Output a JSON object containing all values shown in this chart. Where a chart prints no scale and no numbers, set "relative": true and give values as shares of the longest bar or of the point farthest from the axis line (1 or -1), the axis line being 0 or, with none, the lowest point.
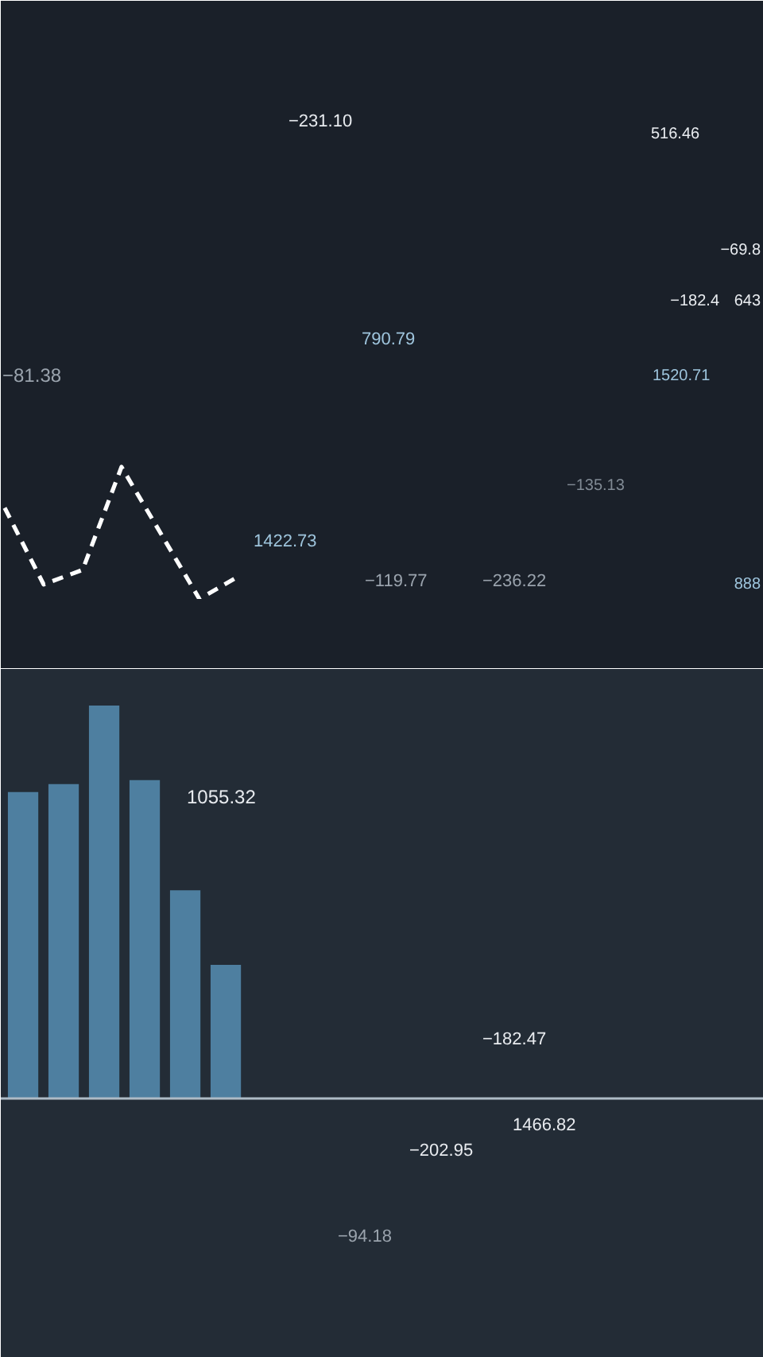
{
  "chart_data": [
    {
      "type": "line",
      "relative": true,
      "categories": [
        null,
        null,
        null,
        null,
        null,
        null,
        null
      ],
      "values": [
        0.69,
        0.11,
        0.22,
        1,
        0.5,
        0,
        0.17
      ],
      "color": "#ffffff",
      "line_style": "dashed",
      "annotations": [
        "−231.10",
        "516.46",
        "−69.8",
        "−182.4",
        "643",
        "790.79",
        "1520.71",
        "−81.38",
        "−135.13",
        "1422.73",
        "−119.77",
        "−236.22",
        "888"
      ]
    },
    {
      "type": "bar",
      "relative": true,
      "categories": [
        null,
        null,
        null,
        null,
        null,
        null
      ],
      "values": [
        0.78,
        0.8,
        1,
        0.81,
        0.53,
        0.34
      ],
      "color": "#4e7fa0",
      "annotations": [
        "1055.32",
        "−182.47",
        "1466.82",
        "−202.95",
        "−94.18"
      ]
    }
  ]
}
